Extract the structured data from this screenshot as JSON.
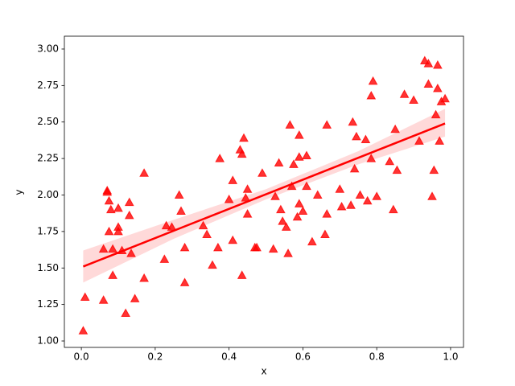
{
  "chart_data": {
    "type": "regplot",
    "xlabel": "x",
    "ylabel": "y",
    "color": "#ff0000",
    "marker": "triangle",
    "x": [
      0.005,
      0.01,
      0.06,
      0.06,
      0.07,
      0.07,
      0.075,
      0.075,
      0.08,
      0.085,
      0.085,
      0.1,
      0.1,
      0.1,
      0.11,
      0.12,
      0.13,
      0.13,
      0.135,
      0.145,
      0.17,
      0.17,
      0.225,
      0.23,
      0.245,
      0.265,
      0.27,
      0.28,
      0.28,
      0.33,
      0.34,
      0.355,
      0.37,
      0.375,
      0.4,
      0.41,
      0.41,
      0.43,
      0.435,
      0.435,
      0.44,
      0.445,
      0.45,
      0.45,
      0.47,
      0.475,
      0.49,
      0.52,
      0.525,
      0.535,
      0.54,
      0.545,
      0.555,
      0.56,
      0.565,
      0.57,
      0.575,
      0.585,
      0.59,
      0.59,
      0.59,
      0.6,
      0.61,
      0.61,
      0.625,
      0.64,
      0.66,
      0.665,
      0.665,
      0.7,
      0.705,
      0.73,
      0.735,
      0.74,
      0.745,
      0.755,
      0.77,
      0.775,
      0.785,
      0.785,
      0.79,
      0.8,
      0.835,
      0.845,
      0.85,
      0.855,
      0.875,
      0.9,
      0.915,
      0.93,
      0.94,
      0.94,
      0.95,
      0.955,
      0.96,
      0.965,
      0.965,
      0.97,
      0.975,
      0.985
    ],
    "values": [
      1.07,
      1.3,
      1.28,
      1.63,
      2.02,
      2.03,
      1.75,
      1.96,
      1.9,
      1.63,
      1.45,
      1.91,
      1.78,
      1.75,
      1.62,
      1.19,
      1.95,
      1.86,
      1.6,
      1.29,
      1.43,
      2.15,
      1.56,
      1.79,
      1.78,
      2.0,
      1.89,
      1.4,
      1.64,
      1.79,
      1.73,
      1.52,
      1.64,
      2.25,
      1.97,
      2.1,
      1.69,
      2.31,
      2.28,
      1.45,
      2.39,
      1.98,
      2.04,
      1.87,
      1.64,
      1.64,
      2.15,
      1.63,
      1.99,
      2.22,
      1.9,
      1.82,
      1.78,
      1.6,
      2.48,
      2.06,
      2.21,
      1.85,
      1.94,
      2.26,
      2.41,
      1.89,
      2.27,
      2.06,
      1.68,
      2.0,
      1.73,
      2.48,
      1.87,
      2.04,
      1.92,
      1.93,
      2.5,
      2.18,
      2.4,
      2.0,
      2.38,
      1.96,
      2.25,
      2.68,
      2.78,
      1.99,
      2.23,
      1.9,
      2.45,
      2.17,
      2.69,
      2.65,
      2.37,
      2.92,
      2.9,
      2.76,
      1.99,
      2.17,
      2.55,
      2.73,
      2.89,
      2.37,
      2.64,
      2.66
    ],
    "regression": {
      "x": [
        0.005,
        0.985
      ],
      "y": [
        1.51,
        2.49
      ]
    },
    "ci": {
      "x": [
        0.005,
        0.25,
        0.5,
        0.75,
        0.985
      ],
      "lower": [
        1.4,
        1.7,
        1.97,
        2.21,
        2.4
      ],
      "upper": [
        1.62,
        1.83,
        2.04,
        2.3,
        2.59
      ]
    },
    "xlim": [
      -0.046,
      1.035
    ],
    "ylim": [
      0.956,
      3.088
    ],
    "xticks": [
      {
        "value": 0,
        "label": "0.0"
      },
      0.2,
      0.4,
      0.6,
      0.8,
      {
        "value": 1,
        "label": "1.0"
      }
    ],
    "yticks": [
      {
        "value": 1,
        "label": "1.00"
      },
      1.25,
      {
        "value": 1.5,
        "label": "1.50"
      },
      1.75,
      {
        "value": 2,
        "label": "2.00"
      },
      2.25,
      {
        "value": 2.5,
        "label": "2.50"
      },
      2.75,
      {
        "value": 3,
        "label": "3.00"
      }
    ]
  }
}
